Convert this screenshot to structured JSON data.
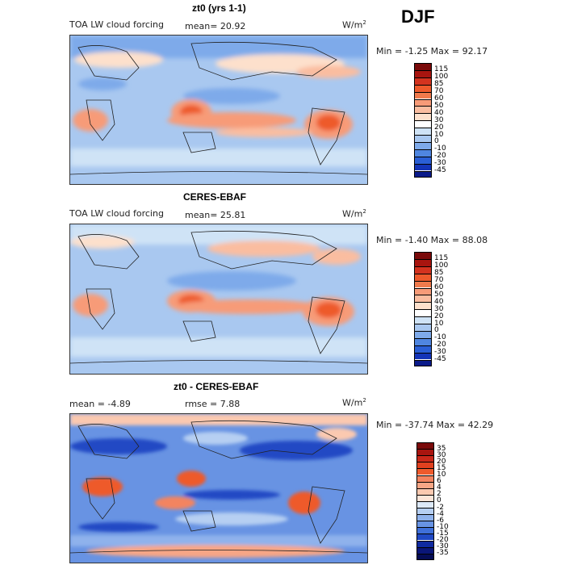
{
  "season": "DJF",
  "panels": [
    {
      "title": "zt0 (yrs 1-1)",
      "left_label": "TOA LW cloud forcing",
      "mid_label": "mean=  20.92",
      "units_base": "W/m",
      "units_exp": "2",
      "minmax": "Min =  -1.25 Max =  92.17",
      "colorbar_ticks": [
        "115",
        "100",
        "85",
        "70",
        "60",
        "50",
        "40",
        "30",
        "20",
        "10",
        "0",
        "-10",
        "-20",
        "-30",
        "-45"
      ],
      "colorbar_colors": [
        "#7a0a0a",
        "#a8150f",
        "#d4331f",
        "#ee5a2c",
        "#f07a4c",
        "#f79b78",
        "#fabda0",
        "#fde0cc",
        "#ffffff",
        "#cfe3f6",
        "#a9c8f0",
        "#7eaaea",
        "#4f86e0",
        "#2a5fd6",
        "#1434b8",
        "#0a1b8a"
      ]
    },
    {
      "title": "CERES-EBAF",
      "left_label": "TOA LW cloud forcing",
      "mid_label": "mean=  25.81",
      "units_base": "W/m",
      "units_exp": "2",
      "minmax": "Min =  -1.40 Max =  88.08",
      "colorbar_ticks": [
        "115",
        "100",
        "85",
        "70",
        "60",
        "50",
        "40",
        "30",
        "20",
        "10",
        "0",
        "-10",
        "-20",
        "-30",
        "-45"
      ],
      "colorbar_colors": [
        "#7a0a0a",
        "#a8150f",
        "#d4331f",
        "#ee5a2c",
        "#f07a4c",
        "#f79b78",
        "#fabda0",
        "#fde0cc",
        "#ffffff",
        "#cfe3f6",
        "#a9c8f0",
        "#7eaaea",
        "#4f86e0",
        "#2a5fd6",
        "#1434b8",
        "#0a1b8a"
      ]
    },
    {
      "title": "zt0 - CERES-EBAF",
      "left_label": "mean =  -4.89",
      "mid_label": "rmse =   7.88",
      "units_base": "W/m",
      "units_exp": "2",
      "minmax": "Min = -37.74 Max =  42.29",
      "colorbar_ticks": [
        "35",
        "30",
        "20",
        "15",
        "10",
        "6",
        "4",
        "2",
        "0",
        "-2",
        "-4",
        "-6",
        "-10",
        "-15",
        "-20",
        "-30",
        "-35"
      ],
      "colorbar_colors": [
        "#7a0a0a",
        "#a8150f",
        "#c9281a",
        "#e0401f",
        "#ee5a2c",
        "#f38460",
        "#f7a686",
        "#fbc9b0",
        "#fde5d8",
        "#dde9f8",
        "#b6cff2",
        "#8fb2ec",
        "#6893e3",
        "#3f70da",
        "#2049c4",
        "#0f2aa0",
        "#0a1678",
        "#050c55"
      ]
    }
  ]
}
